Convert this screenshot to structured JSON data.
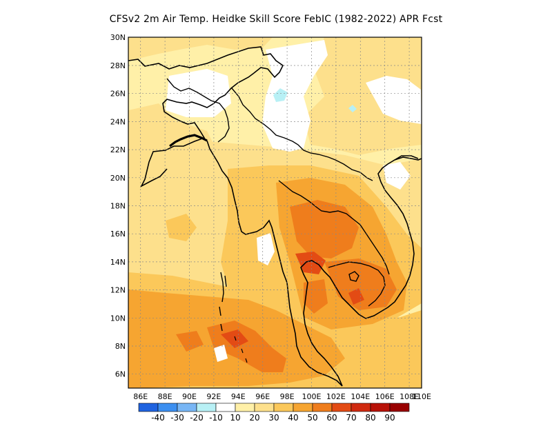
{
  "title": "CFSv2  2m Air Temp. Heidke Skill Score FebIC (1982-2022) APR Fcst",
  "map": {
    "lon_range": [
      86,
      110
    ],
    "lat_range": [
      5,
      30
    ],
    "x_ticks": [
      "86E",
      "88E",
      "90E",
      "92E",
      "94E",
      "96E",
      "98E",
      "100E",
      "102E",
      "104E",
      "106E",
      "108E",
      "110E"
    ],
    "y_ticks": [
      "6N",
      "8N",
      "10N",
      "12N",
      "14N",
      "16N",
      "18N",
      "20N",
      "22N",
      "24N",
      "26N",
      "28N",
      "30N"
    ],
    "grid": "dotted",
    "colors": {
      "c10": "#fff0a8",
      "c20": "#fde08c",
      "c30": "#fbc85a",
      "c40": "#f6a531",
      "c50": "#ef7d1c",
      "c60": "#e34b14",
      "c_neg10": "#b8f0f5"
    }
  },
  "colorbar": {
    "colors": [
      "#1f63e0",
      "#3c8ff0",
      "#78b6f5",
      "#b8f0f5",
      "#ffffff",
      "#fff0a8",
      "#fde08c",
      "#fbc85a",
      "#f6a531",
      "#ef7d1c",
      "#e34b14",
      "#d02a10",
      "#b81208",
      "#990000"
    ],
    "labels": [
      "-40",
      "-30",
      "-20",
      "-10",
      "10",
      "20",
      "30",
      "40",
      "50",
      "60",
      "70",
      "80",
      "90"
    ]
  }
}
